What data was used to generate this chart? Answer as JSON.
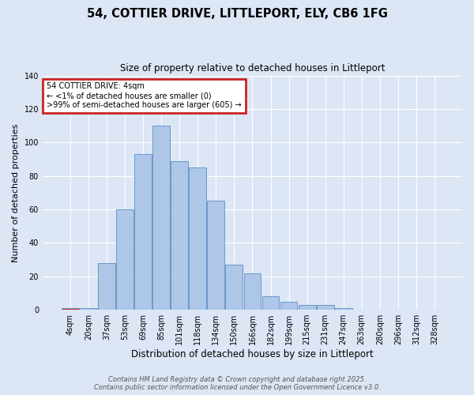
{
  "title": "54, COTTIER DRIVE, LITTLEPORT, ELY, CB6 1FG",
  "subtitle": "Size of property relative to detached houses in Littleport",
  "xlabel": "Distribution of detached houses by size in Littleport",
  "ylabel": "Number of detached properties",
  "categories": [
    "4sqm",
    "20sqm",
    "37sqm",
    "53sqm",
    "69sqm",
    "85sqm",
    "101sqm",
    "118sqm",
    "134sqm",
    "150sqm",
    "166sqm",
    "182sqm",
    "199sqm",
    "215sqm",
    "231sqm",
    "247sqm",
    "263sqm",
    "280sqm",
    "296sqm",
    "312sqm",
    "328sqm"
  ],
  "values": [
    1,
    1,
    28,
    60,
    93,
    110,
    89,
    85,
    65,
    27,
    22,
    8,
    5,
    3,
    3,
    1,
    0,
    0,
    0,
    0,
    0
  ],
  "bar_color": "#aec6e8",
  "bar_edge_color": "#5b8fc7",
  "highlight_bar_color": "#cc3333",
  "highlight_index": 0,
  "annotation_title": "54 COTTIER DRIVE: 4sqm",
  "annotation_line1": "← <1% of detached houses are smaller (0)",
  "annotation_line2": ">99% of semi-detached houses are larger (605) →",
  "annotation_box_color": "#cc2222",
  "ylim": [
    0,
    140
  ],
  "yticks": [
    0,
    20,
    40,
    60,
    80,
    100,
    120,
    140
  ],
  "background_color": "#dce6f5",
  "footer_line1": "Contains HM Land Registry data © Crown copyright and database right 2025.",
  "footer_line2": "Contains public sector information licensed under the Open Government Licence v3.0."
}
